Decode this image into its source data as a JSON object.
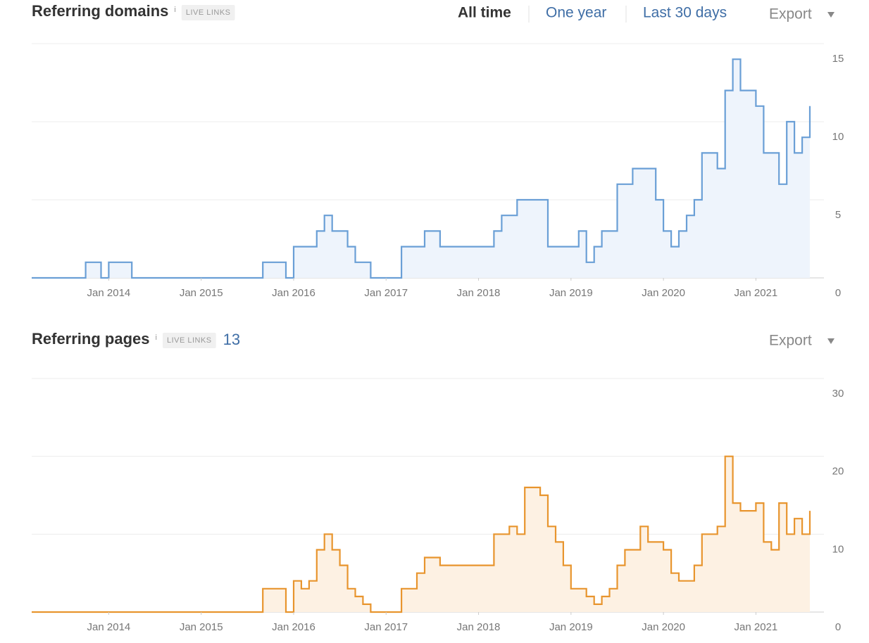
{
  "ui": {
    "period_tabs": [
      "All time",
      "One year",
      "Last 30 days"
    ],
    "export": "Export"
  },
  "chart_data": [
    {
      "type": "step",
      "title": "Referring domains",
      "info": "i",
      "badge": "LIVE LINKS",
      "color": "#6a9fd6",
      "fill": "#eef4fc",
      "x": [
        "2013-03",
        "2013-10",
        "2013-12",
        "2014-01",
        "2014-04",
        "2015-09",
        "2015-12",
        "2016-01",
        "2016-04",
        "2016-05",
        "2016-06",
        "2016-08",
        "2016-09",
        "2016-11",
        "2017-03",
        "2017-06",
        "2017-08",
        "2018-03",
        "2018-04",
        "2018-06",
        "2018-10",
        "2019-02",
        "2019-03",
        "2019-04",
        "2019-05",
        "2019-07",
        "2019-09",
        "2019-12",
        "2020-01",
        "2020-02",
        "2020-03",
        "2020-04",
        "2020-05",
        "2020-06",
        "2020-08",
        "2020-09",
        "2020-10",
        "2020-11",
        "2021-01",
        "2021-02",
        "2021-04",
        "2021-05",
        "2021-06",
        "2021-07",
        "2021-08"
      ],
      "values": [
        0,
        1,
        0,
        1,
        0,
        1,
        0,
        2,
        3,
        4,
        3,
        2,
        1,
        0,
        2,
        3,
        2,
        3,
        4,
        5,
        2,
        3,
        1,
        2,
        3,
        6,
        7,
        5,
        3,
        2,
        3,
        4,
        5,
        8,
        7,
        12,
        14,
        12,
        11,
        8,
        6,
        10,
        8,
        9,
        11
      ],
      "xlim": [
        "2013-03",
        "2021-08"
      ],
      "xticks": [
        {
          "value": "2014-01",
          "label": "Jan 2014"
        },
        {
          "value": "2015-01",
          "label": "Jan 2015"
        },
        {
          "value": "2016-01",
          "label": "Jan 2016"
        },
        {
          "value": "2017-01",
          "label": "Jan 2017"
        },
        {
          "value": "2018-01",
          "label": "Jan 2018"
        },
        {
          "value": "2019-01",
          "label": "Jan 2019"
        },
        {
          "value": "2020-01",
          "label": "Jan 2020"
        },
        {
          "value": "2021-01",
          "label": "Jan 2021"
        }
      ],
      "ylim": [
        0,
        15
      ],
      "yticks": [
        0,
        5,
        10,
        15
      ],
      "grid": true
    },
    {
      "type": "step",
      "title": "Referring pages",
      "info": "i",
      "badge": "LIVE LINKS",
      "count": 13,
      "color": "#e8952e",
      "fill": "#fdf1e3",
      "x": [
        "2013-03",
        "2015-09",
        "2015-12",
        "2016-01",
        "2016-02",
        "2016-03",
        "2016-04",
        "2016-05",
        "2016-06",
        "2016-07",
        "2016-08",
        "2016-09",
        "2016-10",
        "2016-11",
        "2017-03",
        "2017-05",
        "2017-06",
        "2017-08",
        "2018-03",
        "2018-05",
        "2018-06",
        "2018-07",
        "2018-09",
        "2018-10",
        "2018-11",
        "2018-12",
        "2019-01",
        "2019-03",
        "2019-04",
        "2019-05",
        "2019-06",
        "2019-07",
        "2019-08",
        "2019-10",
        "2019-11",
        "2020-01",
        "2020-02",
        "2020-03",
        "2020-05",
        "2020-06",
        "2020-08",
        "2020-09",
        "2020-10",
        "2020-11",
        "2021-01",
        "2021-02",
        "2021-03",
        "2021-04",
        "2021-05",
        "2021-06",
        "2021-07",
        "2021-08"
      ],
      "values": [
        0,
        3,
        0,
        4,
        3,
        4,
        8,
        10,
        8,
        6,
        3,
        2,
        1,
        0,
        3,
        5,
        7,
        6,
        10,
        11,
        10,
        16,
        15,
        11,
        9,
        6,
        3,
        2,
        1,
        2,
        3,
        6,
        8,
        11,
        9,
        8,
        5,
        4,
        6,
        10,
        11,
        20,
        14,
        13,
        14,
        9,
        8,
        14,
        10,
        12,
        10,
        13
      ],
      "xlim": [
        "2013-03",
        "2021-08"
      ],
      "xticks": [
        {
          "value": "2014-01",
          "label": "Jan 2014"
        },
        {
          "value": "2015-01",
          "label": "Jan 2015"
        },
        {
          "value": "2016-01",
          "label": "Jan 2016"
        },
        {
          "value": "2017-01",
          "label": "Jan 2017"
        },
        {
          "value": "2018-01",
          "label": "Jan 2018"
        },
        {
          "value": "2019-01",
          "label": "Jan 2019"
        },
        {
          "value": "2020-01",
          "label": "Jan 2020"
        },
        {
          "value": "2021-01",
          "label": "Jan 2021"
        }
      ],
      "ylim": [
        0,
        30
      ],
      "yticks": [
        0,
        10,
        20,
        30
      ],
      "grid": true
    }
  ]
}
